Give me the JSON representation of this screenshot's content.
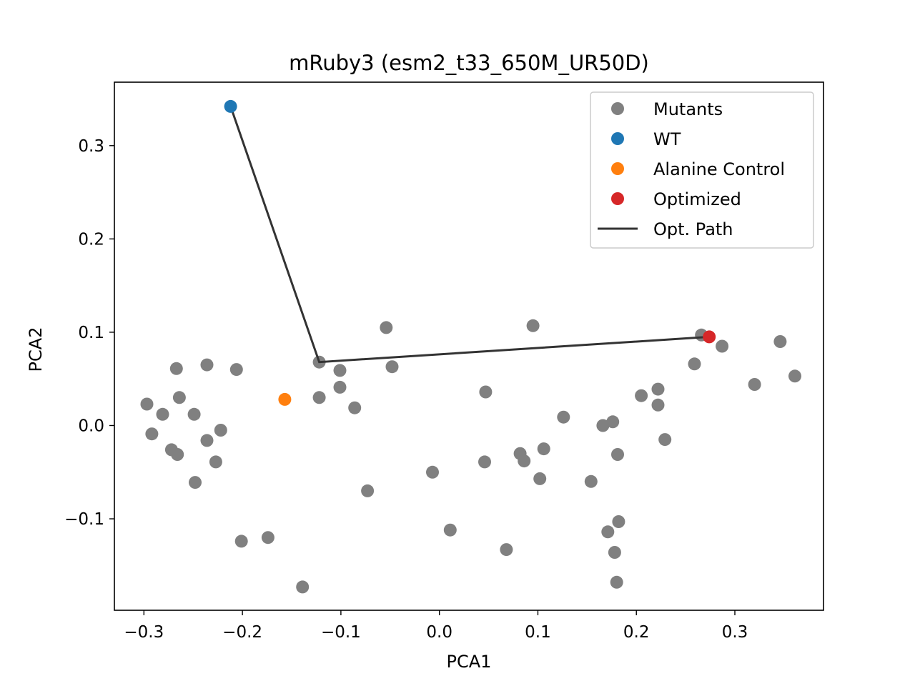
{
  "chart_data": {
    "type": "scatter",
    "title": "mRuby3 (esm2_t33_650M_UR50D)",
    "xlabel": "PCA1",
    "ylabel": "PCA2",
    "xlim": [
      -0.33,
      0.39
    ],
    "ylim": [
      -0.198,
      0.368
    ],
    "xticks": [
      -0.3,
      -0.2,
      -0.1,
      0.0,
      0.1,
      0.2,
      0.3
    ],
    "xtick_labels": [
      "−0.3",
      "−0.2",
      "−0.1",
      "0.0",
      "0.1",
      "0.2",
      "0.3"
    ],
    "yticks": [
      -0.1,
      0.0,
      0.1,
      0.2,
      0.3
    ],
    "ytick_labels": [
      "−0.1",
      "0.0",
      "0.1",
      "0.2",
      "0.3"
    ],
    "grid": false,
    "legend_position": "top-right",
    "series": [
      {
        "name": "Mutants",
        "kind": "points",
        "color": "#808080",
        "points": [
          [
            -0.297,
            0.023
          ],
          [
            -0.292,
            -0.009
          ],
          [
            -0.281,
            0.012
          ],
          [
            -0.272,
            -0.026
          ],
          [
            -0.267,
            0.061
          ],
          [
            -0.266,
            -0.031
          ],
          [
            -0.264,
            0.03
          ],
          [
            -0.249,
            0.012
          ],
          [
            -0.248,
            -0.061
          ],
          [
            -0.236,
            0.065
          ],
          [
            -0.236,
            -0.016
          ],
          [
            -0.227,
            -0.039
          ],
          [
            -0.222,
            -0.005
          ],
          [
            -0.206,
            0.06
          ],
          [
            -0.201,
            -0.124
          ],
          [
            -0.174,
            -0.12
          ],
          [
            -0.139,
            -0.173
          ],
          [
            -0.122,
            0.068
          ],
          [
            -0.122,
            0.03
          ],
          [
            -0.101,
            0.059
          ],
          [
            -0.101,
            0.041
          ],
          [
            -0.086,
            0.019
          ],
          [
            -0.073,
            -0.07
          ],
          [
            -0.054,
            0.105
          ],
          [
            -0.048,
            0.063
          ],
          [
            -0.007,
            -0.05
          ],
          [
            0.011,
            -0.112
          ],
          [
            0.046,
            -0.039
          ],
          [
            0.047,
            0.036
          ],
          [
            0.068,
            -0.133
          ],
          [
            0.082,
            -0.03
          ],
          [
            0.086,
            -0.038
          ],
          [
            0.095,
            0.107
          ],
          [
            0.102,
            -0.057
          ],
          [
            0.106,
            -0.025
          ],
          [
            0.126,
            0.009
          ],
          [
            0.154,
            -0.06
          ],
          [
            0.166,
            0.0
          ],
          [
            0.171,
            -0.114
          ],
          [
            0.176,
            0.004
          ],
          [
            0.178,
            -0.136
          ],
          [
            0.18,
            -0.168
          ],
          [
            0.181,
            -0.031
          ],
          [
            0.182,
            -0.103
          ],
          [
            0.205,
            0.032
          ],
          [
            0.222,
            0.039
          ],
          [
            0.222,
            0.022
          ],
          [
            0.229,
            -0.015
          ],
          [
            0.259,
            0.066
          ],
          [
            0.266,
            0.097
          ],
          [
            0.287,
            0.085
          ],
          [
            0.32,
            0.044
          ],
          [
            0.346,
            0.09
          ],
          [
            0.361,
            0.053
          ]
        ]
      },
      {
        "name": "WT",
        "kind": "points",
        "color": "#1f77b4",
        "points": [
          [
            -0.212,
            0.342
          ]
        ]
      },
      {
        "name": "Alanine Control",
        "kind": "points",
        "color": "#ff7f0e",
        "points": [
          [
            -0.157,
            0.028
          ]
        ]
      },
      {
        "name": "Optimized",
        "kind": "points",
        "color": "#d62728",
        "points": [
          [
            0.274,
            0.095
          ]
        ]
      },
      {
        "name": "Opt. Path",
        "kind": "line",
        "color": "#333333",
        "points": [
          [
            -0.212,
            0.342
          ],
          [
            -0.122,
            0.068
          ],
          [
            0.274,
            0.095
          ]
        ]
      }
    ]
  }
}
